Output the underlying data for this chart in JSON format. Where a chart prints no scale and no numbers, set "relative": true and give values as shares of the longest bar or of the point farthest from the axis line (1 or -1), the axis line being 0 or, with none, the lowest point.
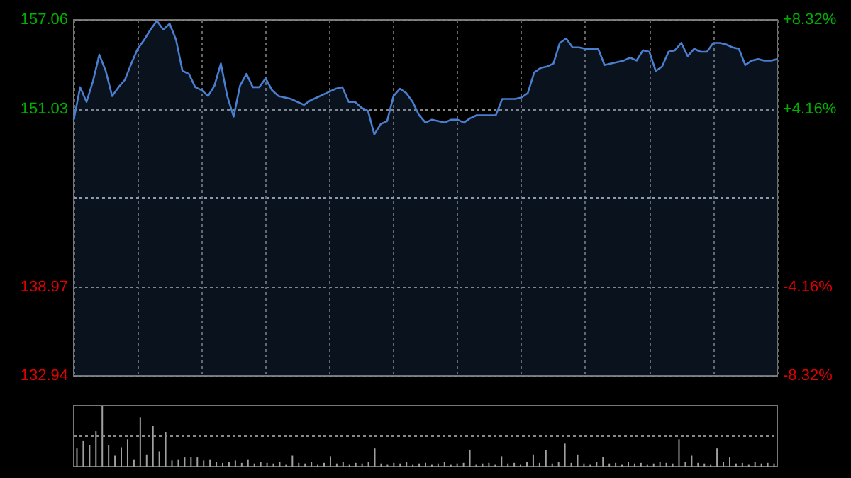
{
  "chart_data": [
    {
      "type": "area",
      "categories": [
        null,
        null,
        null,
        null,
        null,
        null,
        null,
        null,
        null,
        null,
        null,
        null,
        null,
        null,
        null,
        null,
        null,
        null,
        null,
        null,
        null,
        null,
        null,
        null,
        null,
        null,
        null,
        null,
        null,
        null,
        null,
        null,
        null,
        null,
        null,
        null,
        null,
        null,
        null,
        null,
        null,
        null,
        null,
        null,
        null,
        null,
        null,
        null,
        null,
        null,
        null,
        null,
        null,
        null,
        null,
        null,
        null,
        null,
        null,
        null,
        null,
        null,
        null,
        null,
        null,
        null,
        null,
        null,
        null,
        null,
        null,
        null,
        null,
        null,
        null,
        null,
        null,
        null,
        null,
        null,
        null,
        null,
        null,
        null,
        null,
        null,
        null,
        null,
        null,
        null,
        null,
        null,
        null,
        null,
        null,
        null,
        null,
        null,
        null,
        null,
        null,
        null,
        null,
        null,
        null,
        null,
        null,
        null,
        null,
        null,
        null
      ],
      "series": [
        {
          "color": "#4a7fd0",
          "values": [
            150.3,
            152.5,
            151.5,
            152.9,
            154.7,
            153.6,
            151.9,
            152.5,
            153.0,
            154.1,
            155.1,
            155.7,
            156.4,
            157.0,
            156.4,
            156.8,
            155.7,
            153.6,
            153.4,
            152.5,
            152.3,
            151.9,
            152.6,
            154.1,
            151.9,
            150.5,
            152.6,
            153.4,
            152.5,
            152.5,
            153.1,
            152.3,
            151.9,
            151.8,
            151.7,
            151.5,
            151.3,
            151.6,
            151.8,
            152.0,
            152.2,
            152.4,
            152.5,
            151.5,
            151.5,
            151.1,
            150.9,
            149.3,
            150.0,
            150.2,
            151.9,
            152.4,
            152.1,
            151.5,
            150.6,
            150.1,
            150.3,
            150.2,
            150.1,
            150.3,
            150.3,
            150.1,
            150.4,
            150.6,
            150.6,
            150.6,
            150.6,
            151.7,
            151.7,
            151.7,
            151.8,
            152.1,
            153.5,
            153.8,
            153.9,
            154.1,
            155.5,
            155.8,
            155.2,
            155.2,
            155.1,
            155.1,
            155.1,
            154.0,
            154.1,
            154.2,
            154.3,
            154.5,
            154.3,
            155.0,
            154.9,
            153.6,
            153.9,
            154.9,
            155.0,
            155.5,
            154.6,
            155.1,
            154.9,
            154.9,
            155.5,
            155.5,
            155.4,
            155.2,
            155.1,
            154.0,
            154.3,
            154.4,
            154.3,
            154.3,
            154.4
          ]
        }
      ],
      "ylim": [
        132.94,
        157.06
      ],
      "yticks": [
        132.94,
        138.97,
        151.03,
        157.06
      ],
      "y2lim": [
        -8.32,
        8.32
      ],
      "y2ticks": [
        {
          "value": 8.32,
          "label": "+8.32%"
        },
        {
          "value": 4.16,
          "label": "+4.16%"
        },
        {
          "value": -4.16,
          "label": "-4.16%"
        },
        {
          "value": -8.32,
          "label": "-8.32%"
        }
      ],
      "ref_lines": [
        {
          "axis": "y",
          "value": 145,
          "color": "#8a9bb0",
          "line_style": "dashed"
        }
      ],
      "grid": true,
      "marker": "none"
    },
    {
      "type": "bar",
      "relative": true,
      "color": "#a0a0a0",
      "categories": [
        null,
        null,
        null,
        null,
        null,
        null,
        null,
        null,
        null,
        null,
        null,
        null,
        null,
        null,
        null,
        null,
        null,
        null,
        null,
        null,
        null,
        null,
        null,
        null,
        null,
        null,
        null,
        null,
        null,
        null,
        null,
        null,
        null,
        null,
        null,
        null,
        null,
        null,
        null,
        null,
        null,
        null,
        null,
        null,
        null,
        null,
        null,
        null,
        null,
        null,
        null,
        null,
        null,
        null,
        null,
        null,
        null,
        null,
        null,
        null,
        null,
        null,
        null,
        null,
        null,
        null,
        null,
        null,
        null,
        null,
        null,
        null,
        null,
        null,
        null,
        null,
        null,
        null,
        null,
        null,
        null,
        null,
        null,
        null,
        null,
        null,
        null,
        null,
        null,
        null,
        null,
        null,
        null,
        null,
        null,
        null,
        null,
        null,
        null,
        null,
        null,
        null,
        null,
        null,
        null,
        null,
        null,
        null,
        null,
        null,
        null
      ],
      "values": [
        0.3,
        0.42,
        0.35,
        0.58,
        1.0,
        0.35,
        0.18,
        0.32,
        0.45,
        0.12,
        0.81,
        0.2,
        0.67,
        0.25,
        0.57,
        0.1,
        0.12,
        0.15,
        0.16,
        0.15,
        0.1,
        0.12,
        0.08,
        0.06,
        0.08,
        0.1,
        0.06,
        0.12,
        0.05,
        0.08,
        0.06,
        0.05,
        0.07,
        0.04,
        0.18,
        0.06,
        0.05,
        0.08,
        0.04,
        0.06,
        0.17,
        0.05,
        0.07,
        0.04,
        0.06,
        0.05,
        0.08,
        0.3,
        0.05,
        0.04,
        0.06,
        0.05,
        0.07,
        0.04,
        0.05,
        0.06,
        0.04,
        0.05,
        0.07,
        0.04,
        0.05,
        0.06,
        0.28,
        0.04,
        0.05,
        0.06,
        0.04,
        0.17,
        0.05,
        0.06,
        0.04,
        0.07,
        0.2,
        0.06,
        0.27,
        0.05,
        0.08,
        0.38,
        0.06,
        0.2,
        0.05,
        0.04,
        0.07,
        0.16,
        0.05,
        0.06,
        0.04,
        0.07,
        0.05,
        0.06,
        0.04,
        0.05,
        0.07,
        0.06,
        0.05,
        0.45,
        0.08,
        0.18,
        0.06,
        0.05,
        0.04,
        0.3,
        0.07,
        0.15,
        0.05,
        0.06,
        0.04,
        0.07,
        0.05,
        0.06,
        0.05
      ],
      "ref_lines": [
        {
          "axis": "y",
          "value": 0.5,
          "color": "#888888",
          "line_style": "dashed"
        }
      ]
    }
  ]
}
